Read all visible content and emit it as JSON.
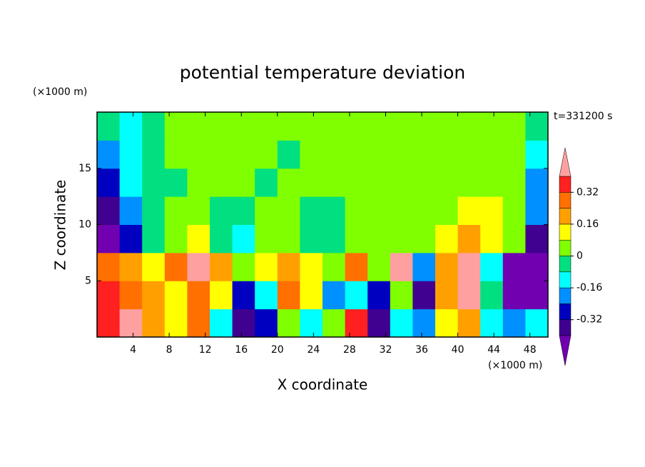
{
  "chart_data": {
    "type": "contour",
    "title": "potential temperature deviation",
    "xlabel": "X coordinate",
    "ylabel": "Z coordinate",
    "x_unit_label": "(×1000 m)",
    "y_unit_label": "(×1000 m)",
    "annotation": "t=331200 s",
    "xlim": [
      0,
      50
    ],
    "ylim": [
      0,
      20
    ],
    "xticks": [
      4,
      8,
      12,
      16,
      20,
      24,
      28,
      32,
      36,
      40,
      44,
      48
    ],
    "yticks": [
      5,
      10,
      15
    ],
    "x": [
      1.25,
      3.75,
      6.25,
      8.75,
      11.25,
      13.75,
      16.25,
      18.75,
      21.25,
      23.75,
      26.25,
      28.75,
      31.25,
      33.75,
      36.25,
      38.75,
      41.25,
      43.75,
      46.25,
      48.75
    ],
    "y": [
      1.25,
      3.75,
      6.25,
      8.75,
      11.25,
      13.75,
      16.25,
      18.75
    ],
    "values": [
      [
        0.36,
        0.44,
        0.2,
        0.12,
        0.28,
        -0.12,
        -0.36,
        -0.28,
        0.04,
        -0.12,
        0.04,
        0.36,
        -0.36,
        -0.12,
        -0.2,
        0.12,
        0.2,
        -0.12,
        -0.2,
        -0.12
      ],
      [
        0.36,
        0.28,
        0.2,
        0.12,
        0.28,
        0.12,
        -0.28,
        -0.12,
        0.28,
        0.12,
        -0.2,
        -0.12,
        -0.28,
        0.04,
        -0.36,
        0.2,
        0.44,
        -0.04,
        -0.44,
        -0.44
      ],
      [
        0.28,
        0.2,
        0.12,
        0.28,
        0.44,
        0.2,
        0.04,
        0.12,
        0.2,
        0.12,
        0.04,
        0.28,
        0.04,
        0.44,
        -0.2,
        0.2,
        0.44,
        -0.12,
        -0.44,
        -0.44
      ],
      [
        -0.44,
        -0.28,
        -0.04,
        0.04,
        0.12,
        -0.04,
        -0.12,
        0.04,
        0.04,
        -0.04,
        -0.04,
        0.04,
        0.04,
        0.04,
        0.04,
        0.12,
        0.2,
        0.12,
        0.04,
        -0.36
      ],
      [
        -0.36,
        -0.2,
        -0.04,
        0.04,
        0.04,
        -0.04,
        -0.04,
        0.04,
        0.04,
        -0.04,
        -0.04,
        0.04,
        0.04,
        0.04,
        0.04,
        0.04,
        0.12,
        0.12,
        0.04,
        -0.2
      ],
      [
        -0.28,
        -0.12,
        -0.04,
        -0.04,
        0.04,
        0.04,
        0.04,
        -0.04,
        0.04,
        0.04,
        0.04,
        0.04,
        0.04,
        0.04,
        0.04,
        0.04,
        0.04,
        0.04,
        0.04,
        -0.2
      ],
      [
        -0.2,
        -0.12,
        -0.04,
        0.04,
        0.04,
        0.04,
        0.04,
        0.04,
        -0.04,
        0.04,
        0.04,
        0.04,
        0.04,
        0.04,
        0.04,
        0.04,
        0.04,
        0.04,
        0.04,
        -0.12
      ],
      [
        -0.04,
        -0.12,
        -0.04,
        0.04,
        0.04,
        0.04,
        0.04,
        0.04,
        0.04,
        0.04,
        0.04,
        0.04,
        0.04,
        0.04,
        0.04,
        0.04,
        0.04,
        0.04,
        0.04,
        -0.04
      ]
    ],
    "levels": [
      -0.4,
      -0.32,
      -0.24,
      -0.16,
      -0.08,
      0,
      0.08,
      0.16,
      0.24,
      0.32,
      0.4
    ],
    "colors": [
      "#7000b0",
      "#400090",
      "#0000c0",
      "#0090ff",
      "#00ffff",
      "#00e080",
      "#80ff00",
      "#ffff00",
      "#ffa000",
      "#ff7000",
      "#ff2020",
      "#ffa0a0"
    ],
    "colorbar_ticks": [
      0.32,
      0.16,
      0,
      -0.16,
      -0.32
    ]
  }
}
